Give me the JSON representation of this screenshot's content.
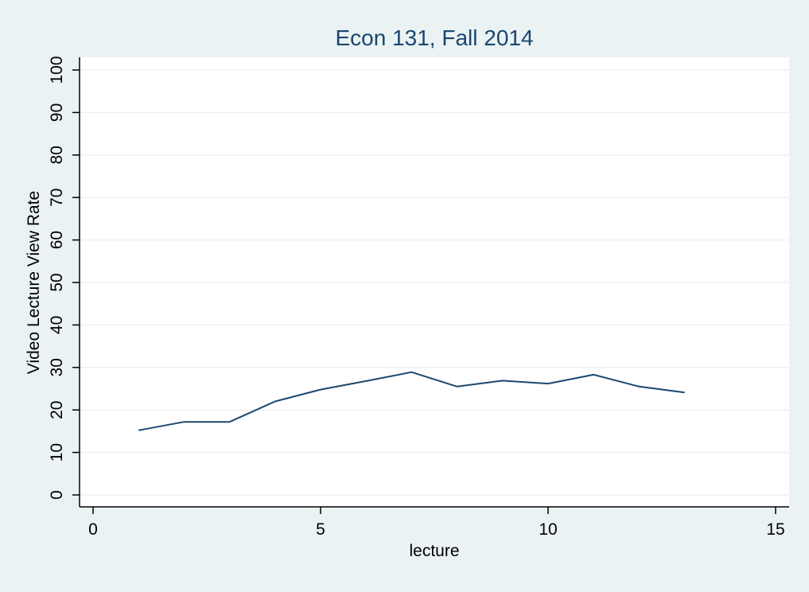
{
  "colors": {
    "background": "#eaf2f3",
    "plot_background": "#ffffff",
    "series_line": "#1a476f",
    "title": "#1a476f",
    "gridline": "#eaf2f3"
  },
  "chart_data": {
    "type": "line",
    "title": "Econ 131, Fall 2014",
    "xlabel": "lecture",
    "ylabel": "Video Lecture View Rate",
    "xlim": [
      0,
      15
    ],
    "ylim": [
      0,
      100
    ],
    "xticks": [
      0,
      5,
      10,
      15
    ],
    "yticks": [
      0,
      10,
      20,
      30,
      40,
      50,
      60,
      70,
      80,
      90,
      100
    ],
    "grid": true,
    "legend": "none",
    "series": [
      {
        "x": [
          1,
          2,
          3,
          4,
          5,
          6,
          7,
          8,
          9,
          10,
          11,
          12,
          13
        ],
        "y": [
          15.2,
          17.2,
          17.2,
          22.0,
          24.8,
          26.8,
          28.9,
          25.5,
          26.9,
          26.2,
          28.3,
          25.5,
          24.1
        ]
      }
    ]
  }
}
